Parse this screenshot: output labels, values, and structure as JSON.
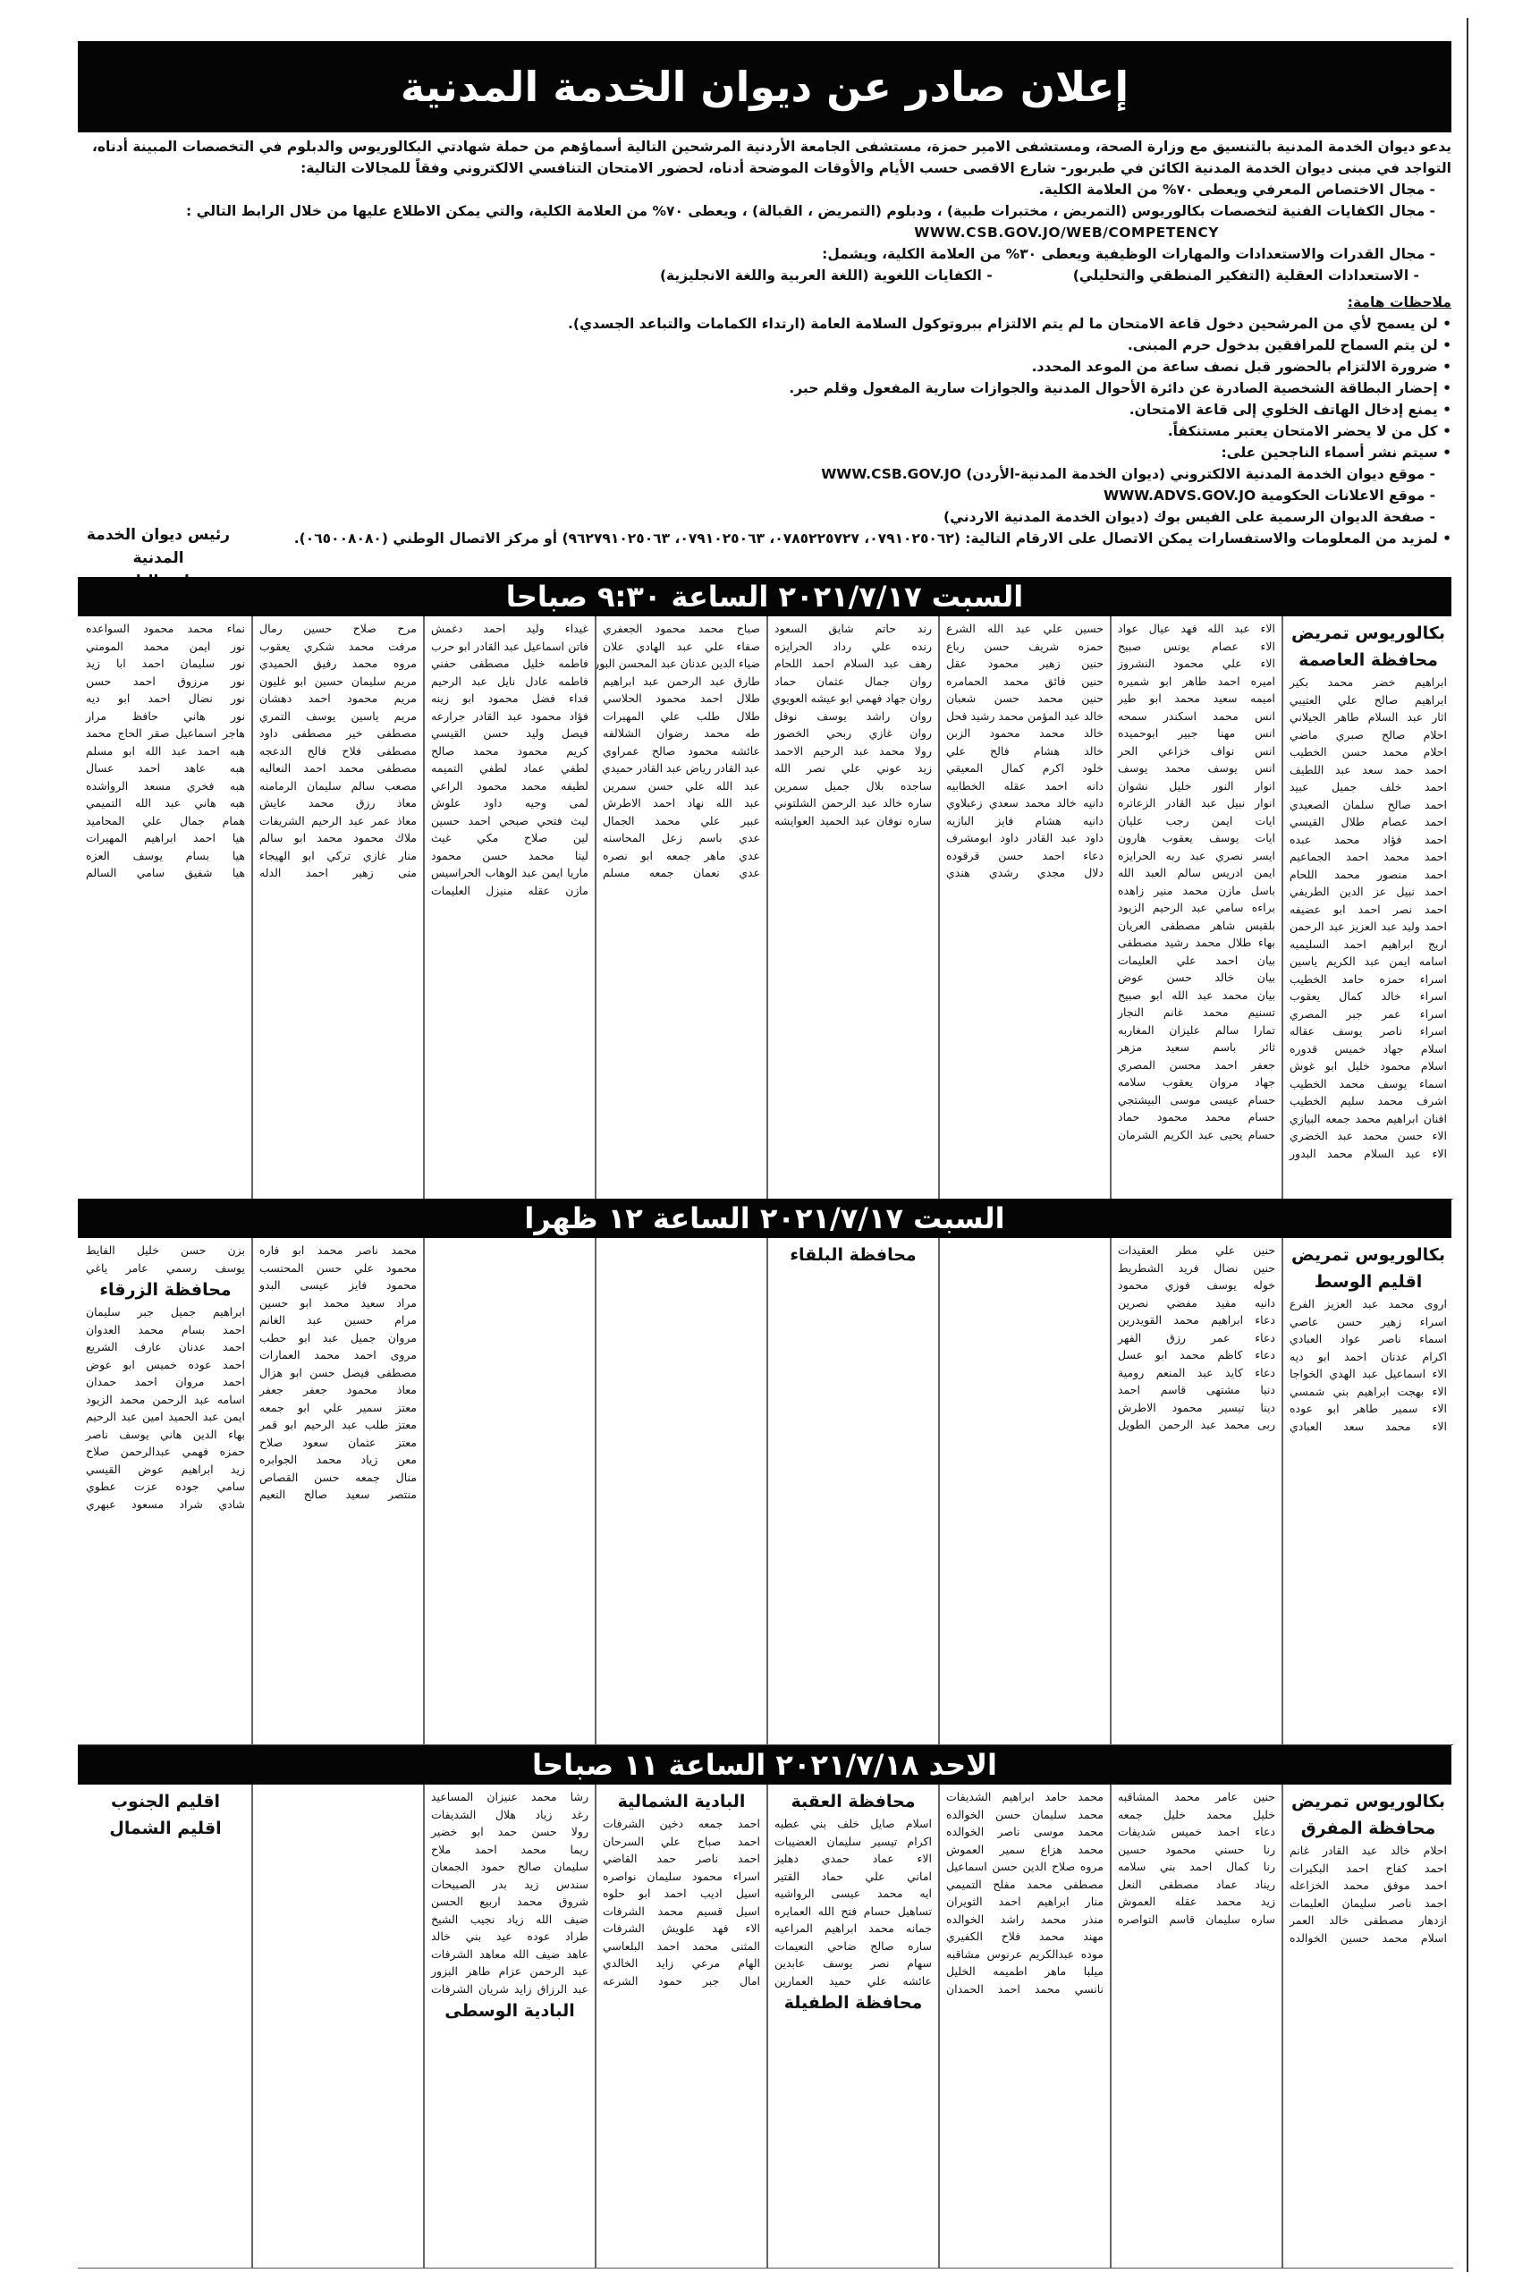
{
  "title": "إعلان صادر عن ديوان الخدمة المدنية",
  "intro": {
    "paragraph": "يدعو ديوان الخدمة المدنية بالتنسيق مع وزارة الصحة، ومستشفى الامير حمزة، مستشفى الجامعة الأردنية المرشحين التالية أسماؤهم من حملة شهادتي البكالوريوس والدبلوم في التخصصات المبينة أدناه، التواجد في مبنى ديوان الخدمة المدنية الكائن في طبربور- شارع الاقصى حسب الأيام والأوقات الموضحة أدناه، لحضور الامتحان التنافسي الالكتروني وفقاً للمجالات التالية:",
    "field1": "- مجال الاختصاص المعرفي ويعطى ٧٠% من العلامة الكلية.",
    "field2": "- مجال الكفايات الفنية لتخصصات بكالوريوس (التمريض ، مختبرات طبية) ، ودبلوم (التمريض ، القبالة) ، ويعطى ٧٠% من العلامة الكلية، والتي يمكن الاطلاع عليها من خلال الرابط التالي :",
    "field2_url": "WWW.CSB.GOV.JO/WEB/COMPETENCY",
    "field3": "- مجال القدرات والاستعدادات والمهارات الوظيفية ويعطى ٣٠% من العلامة الكلية، ويشمل:",
    "field3_a": "- الاستعدادات العقلية (التفكير المنطقي والتحليلي)",
    "field3_b": "- الكفايات اللغوية (اللغة العربية واللغة الانجليزية)",
    "notes_heading": "ملاحظات هامة:",
    "notes": [
      "• لن يسمح لأي من المرشحين دخول قاعة الامتحان ما لم يتم الالتزام ببروتوكول السلامة العامة (ارتداء الكمامات والتباعد الجسدي).",
      "• لن يتم السماح للمرافقين بدخول حرم المبنى.",
      "• ضرورة الالتزام بالحضور قبل نصف ساعة من الموعد المحدد.",
      "• إحضار البطاقة الشخصية الصادرة عن دائرة الأحوال المدنية والجوازات سارية المفعول وقلم حبر.",
      "• يمنع إدخال الهاتف الخلوي إلى قاعة الامتحان.",
      "• كل من لا يحضر الامتحان يعتبر مستنكفاً.",
      "• سيتم نشر أسماء الناجحين على:"
    ],
    "publish": [
      "- موقع ديوان الخدمة المدنية الالكتروني (ديوان الخدمة المدنية-الأردن) WWW.CSB.GOV.JO",
      "- موقع الاعلانات الحكومية WWW.ADVS.GOV.JO",
      "- صفحة الديوان الرسمية على الفيس بوك (ديوان الخدمة المدنية الاردني)"
    ],
    "contact": "• لمزيد من المعلومات والاستفسارات يمكن الاتصال على الارقام التالية: (٠٧٩١٠٢٥٠٦٢، ٠٧٨٥٢٢٥٧٢٧، ٠٧٩١٠٢٥٠٦٣، ٩٦٢٧٩١٠٢٥٠٦٣) أو مركز الاتصال الوطني (٠٦٥٠٠٨٠٨٠)."
  },
  "signature": {
    "role": "رئيس ديوان الخدمة المدنية",
    "name": "سامح الناصر"
  },
  "sections": [
    {
      "banner": "السبت ٢٠٢١/٧/١٧ الساعة ٩:٣٠ صباحا",
      "columns": [
        [
          {
            "h": "بكالوريوس تمريض"
          },
          {
            "h": "محافظة العاصمة"
          },
          "ابراهيم خضر محمد بكير",
          "ابراهيم صالح علي العتيبي",
          "اثار عبد السلام طاهر الجيلاني",
          "احلام صالح صبري ماضي",
          "احلام محمد حسن الخطيب",
          "احمد حمد سعد عبد اللطيف",
          "احمد خلف جميل عبيد",
          "احمد صالح سلمان الصعيدي",
          "احمد عصام طلال القيسي",
          "احمد فؤاد محمد عبده",
          "احمد محمد احمد الجماعيم",
          "احمد منصور محمد اللحام",
          "احمد نبيل عز الدين الطريفي",
          "احمد نصر احمد ابو عضيفه",
          "احمد وليد عبد العزيز عبد الرحمن",
          "اريج ابراهيم احمد السليميه",
          "اسامه ايمن عبد الكريم ياسين",
          "اسراء حمزه حامد الخطيب",
          "اسراء خالد كمال يعقوب",
          "اسراء عمر جبر المصري",
          "اسراء ناصر يوسف عقاله",
          "اسلام جهاد خميس قدوره",
          "اسلام محمود خليل ابو غوش",
          "اسماء يوسف محمد الخطيب",
          "اشرف محمد سليم الخطيب",
          "افنان ابراهيم محمد جمعه البيازي",
          "الاء حسن محمد عبد الخضري",
          "الاء عبد السلام محمد البدور"
        ],
        [
          "الاء عبد الله فهد عيال عواد",
          "الاء عصام يونس صبيح",
          "الاء علي محمود النشروز",
          "اميره احمد طاهر ابو شميره",
          "اميمه سعيد محمد ابو طير",
          "انس محمد اسكندر سمحه",
          "انس مهنا جبير ابوحميده",
          "انس نواف خزاعي الحر",
          "انس يوسف محمد يوسف",
          "انوار النور خليل نشوان",
          "انوار نبيل عبد القادر الزعاتره",
          "ايات ايمن رجب عليان",
          "ايات يوسف يعقوب هارون",
          "ايسر نصري عبد ربه الحرايزه",
          "ايمن ادريس سالم العبد الله",
          "باسل مازن محمد منير زاهده",
          "براءه سامي عبد الرحيم الزيود",
          "بلقيس شاهر مصطفى العريان",
          "بهاء طلال محمد رشيد مصطفى",
          "بيان احمد علي العليمات",
          "بيان خالد حسن عوض",
          "بيان محمد عبد الله ابو صبيح",
          "تسنيم محمد غانم النجار",
          "تمارا سالم عليزان المغاربه",
          "ثائر باسم سعيد مزهر",
          "جعفر احمد محسن المصري",
          "جهاد مروان يعقوب سلامه",
          "حسام عيسى موسى البيشتجي",
          "حسام محمد محمود حماد",
          "حسام يحيى عبد الكريم الشرمان"
        ],
        [
          "حسين علي عبد الله الشرع",
          "حمزه شريف حسن رباع",
          "حنين زهير محمود عقل",
          "حنين فائق محمد الحمامره",
          "حنين محمد حسن شعبان",
          "خالد عبد المؤمن محمد رشيد فحل",
          "خالد محمد محمود الزبن",
          "خالد هشام فالح علي",
          "خلود اكرم كمال المعيقي",
          "دانه احمد عقله الخطابيه",
          "دانيه خالد محمد سعدي زعبلاوي",
          "دانيه هشام فايز البازيه",
          "داود عبد القادر داود ابومشرف",
          "دعاء احمد حسن قرقوده",
          "دلال مجدي رشدي هندي"
        ],
        [
          "رند حاتم شايق السعود",
          "رنده علي رداد الحرايزه",
          "رهف عبد السلام احمد اللحام",
          "روان جمال عثمان حماد",
          "روان جهاد فهمي ابو عيشه العويوي",
          "روان راشد يوسف نوفل",
          "روان غازي ربحي الخضور",
          "رولا محمد عبد الرحيم الاحمد",
          "زيد عوني علي نصر الله",
          "ساجده بلال جميل سمرين",
          "ساره خالد عبد الرحمن الشلتوني",
          "ساره نوفان عبد الحميد العوايشه"
        ],
        [
          "صباح محمد محمود الجعفري",
          "صفاء علي عبد الهادي علان",
          "ضياء الدين عدنان عبد المحسن البوريني",
          "طارق عبد الرحمن عبد ابراهيم",
          "طلال احمد محمود الحلاسي",
          "طلال طلب علي المهيرات",
          "طه محمد رضوان الشلالفه",
          "عائشه محمود صالح عمراوي",
          "عبد القادر رياض عبد القادر حميدي",
          "عبد الله علي حسن سمرين",
          "عبد الله نهاد احمد الاطرش",
          "عبير علي محمد الجمال",
          "عدي باسم زعل المحاسنه",
          "عدي ماهر جمعه ابو نصره",
          "عدي نعمان جمعه مسلم"
        ],
        [
          "غيداء وليد احمد دغمش",
          "فاتن اسماعيل عبد القادر ابو حرب",
          "فاطمه خليل مصطفى حفني",
          "فاطمه عادل نايل عبد الرحيم",
          "فداء فضل محمود ابو زينه",
          "فؤاد محمود عبد القادر جرارعه",
          "فيصل وليد حسن القيسي",
          "كريم محمود محمد صالح",
          "لطفي عماد لطفي التميمه",
          "لطيفه محمد محمود الراعي",
          "لمى وجيه داود علوش",
          "ليث فتحي صبحي احمد حسين",
          "لين صلاح مكي غيث",
          "لينا محمد حسن محمود",
          "ماريا ايمن عبد الوهاب الحراسيس",
          "مازن عقله منيزل العليمات"
        ],
        [
          "مرح صلاح حسين رمال",
          "مرفت محمد شكري يعقوب",
          "مروه محمد رفيق الحميدي",
          "مريم سليمان حسين ابو غليون",
          "مريم محمود احمد دهشان",
          "مريم ياسين يوسف التمري",
          "مصطفى خير مصطفى داود",
          "مصطفى فلاح فالح الدعجه",
          "مصطفى محمد احمد النعاليه",
          "مصعب سالم سليمان الرمامنه",
          "معاذ رزق محمد عايش",
          "معاذ عمر عبد الرحيم الشريفات",
          "ملاك محمود محمد ابو سالم",
          "منار غازي تركي ابو الهيجاء",
          "منى زهير احمد الدله"
        ],
        [
          "نماء محمد محمود السواعده",
          "نور ايمن محمد المومني",
          "نور سليمان احمد ابا زيد",
          "نور مرزوق احمد حسن",
          "نور نضال احمد ابو ديه",
          "نور هاني حافظ مرار",
          "هاجر اسماعيل صقر الحاج محمد",
          "هبه احمد عبد الله ابو مسلم",
          "هبه عاهد احمد عسال",
          "هبه فخري مسعد الرواشده",
          "هبه هاني عبد الله التميمي",
          "همام جمال علي المحاميد",
          "هيا احمد ابراهيم المهيرات",
          "هيا بسام يوسف العزه",
          "هيا شفيق سامي السالم"
        ]
      ]
    },
    {
      "banner": "السبت ٢٠٢١/٧/١٧ الساعة ١٢ ظهرا",
      "columns": [
        [
          {
            "h": "بكالوريوس تمريض"
          },
          {
            "h": "اقليم الوسط"
          },
          "اروى محمد عبد العزيز الفرع",
          "اسراء زهير حسن عاصي",
          "اسماء ناصر عواد العبادي",
          "اكرام عدنان احمد ابو ديه",
          "الاء اسماعيل عبد الهدي الخواجا",
          "الاء بهجت ابراهيم بني شمسي",
          "الاء سمير طاهر ابو عوده",
          "الاء محمد سعد العبادي"
        ],
        [
          "حنين علي مطر العقيدات",
          "حنين نضال فريد الشطريط",
          "خوله يوسف فوزي محمود",
          "دانيه مفيد مفضي نصرين",
          "دعاء ابراهيم محمد القويدرين",
          "دعاء عمر رزق الفهر",
          "دعاء كاظم محمد ابو عسل",
          "دعاء كايد عبد المنعم رومية",
          "دنيا مشتهى قاسم احمد",
          "دينا تيسير محمود الاطرش",
          "ربى محمد عبد الرحمن الطويل"
        ],
        [],
        [
          {
            "h": "محافظة البلقاء"
          }
        ],
        [],
        [],
        [
          "محمد ناصر محمد ابو فاره",
          "محمود علي حسن المحتسب",
          "محمود فايز عيسى البدو",
          "مراد سعيد محمد ابو حسين",
          "مرام حسين عبد الغانم",
          "مروان جميل عبد ابو حطب",
          "مروى احمد محمد العمارات",
          "مصطفى فيصل حسن ابو هزال",
          "معاذ محمود جعفر جعفر",
          "معتز سمير علي ابو جمعه",
          "معتز طلب عبد الرحيم ابو قمر",
          "معتز عثمان سعود صلاح",
          "معن زياد محمد الجوابره",
          "منال جمعه حسن القصاص",
          "منتصر سعيد صالح النعيم"
        ],
        [
          "بزن حسن خليل الفايط",
          "يوسف رسمي عامر ياغي",
          {
            "h": "محافظة الزرقاء"
          },
          "ابراهيم جميل جبر سليمان",
          "احمد بسام محمد العدوان",
          "احمد عدنان عارف الشريع",
          "احمد عوده خميس ابو عوض",
          "احمد مروان احمد حمدان",
          "اسامه عبد الرحمن محمد الزيود",
          "ايمن عبد الحميد امين عبد الرحيم",
          "بهاء الدين هاني يوسف ناصر",
          "حمزه فهمي عبدالرحمن صلاح",
          "زيد ابراهيم عوض القيسي",
          "سامي جوده عزت عطوي",
          "شادي شراد مسعود عبهري"
        ]
      ]
    },
    {
      "banner": "الاحد ٢٠٢١/٧/١٨ الساعة ١١ صباحا",
      "columns": [
        [
          {
            "h": "بكالوريوس تمريض"
          },
          {
            "h": "محافظة المفرق"
          },
          "احلام خالد عبد القادر غانم",
          "احمد كفاح احمد البكيرات",
          "احمد موفق محمد الخزاعله",
          "احمد ناصر سليمان العليمات",
          "ازدهار مصطفى خالد العمر",
          "اسلام محمد حسين الخوالده"
        ],
        [
          "حنين عامر محمد المشاقبه",
          "خليل محمد خليل جمعه",
          "دعاء احمد خميس شديفات",
          "رنا حسني محمود حسين",
          "رنا كمال احمد بني سلامه",
          "ريناد عماد مصطفى النعل",
          "زيد محمد عقله العموش",
          "ساره سليمان قاسم التواصره"
        ],
        [
          "محمد حامد ابراهيم الشديفات",
          "محمد سليمان حسن الخوالده",
          "محمد موسى ناصر الخوالده",
          "محمد هزاع سمير العموش",
          "مروه صلاح الدين حسن اسماعيل",
          "مصطفى محمد مفلح التميمي",
          "منار ابراهيم احمد الثويران",
          "منذر محمد راشد الخوالده",
          "مهند محمد فلاح الكفيري",
          "موده عبدالكريم عرنوس مشاقبه",
          "ميلبا ماهر اطميمه الخليل",
          "نانسي محمد احمد الحمدان"
        ],
        [
          {
            "h": "محافظة العقبة"
          },
          "اسلام صايل خلف بني عطيه",
          "اكرام تيسير سليمان العضيبات",
          "الاء عماد حمدي دهليز",
          "اماني علي حماد القتير",
          "ايه محمد عيسى الرواشيه",
          "تساهيل حسام فتح الله العمايره",
          "جمانه محمد ابراهيم المراعيه",
          "ساره صالح ضاحي النعيمات",
          "سهام نصر يوسف عابدين",
          "عائشه علي حميد العمارين",
          {
            "h": "محافظة الطفيلة"
          }
        ],
        [
          {
            "h": "البادية الشمالية"
          },
          "احمد جمعه دخين الشرفات",
          "احمد صباح علي السرحان",
          "احمد ناصر حمد القاضي",
          "اسراء محمود سليمان نواصره",
          "اسيل اديب احمد ابو حلوه",
          "اسيل قسيم محمد الشرفات",
          "الاء فهد علويش الشرفات",
          "المثنى محمد احمد البلعاسي",
          "الهام مرعي زايد الخالدي",
          "امال جبر حمود الشرعه"
        ],
        [
          "رشا محمد عنيزان المساعيد",
          "رغد زياد هلال الشديفات",
          "رولا حسن حمد ابو خضير",
          "ريما محمد احمد ملاح",
          "سليمان صالح حمود الجمعان",
          "سندس زيد بدر الصبيحات",
          "شروق محمد اربيع الحسن",
          "ضيف الله زياد نجيب الشيخ",
          "طراد عوده عيد بني خالد",
          "عاهد ضيف الله معاهد الشرفات",
          "عبد الرحمن عزام طاهر البزور",
          "عبد الرزاق زايد شريان الشرفات",
          {
            "h": "البادية الوسطى"
          }
        ],
        [],
        [
          {
            "h": "اقليم الجنوب"
          },
          {
            "h": "اقليم الشمال"
          }
        ]
      ]
    }
  ]
}
